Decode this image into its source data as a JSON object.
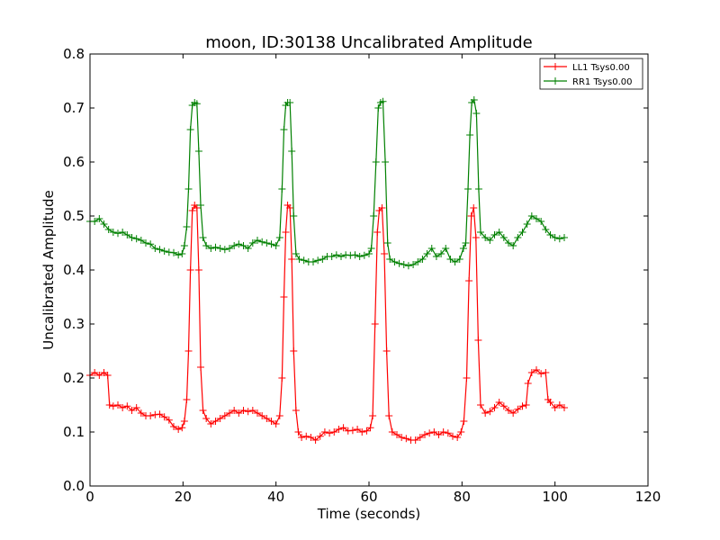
{
  "chart_data": {
    "type": "line",
    "title": "moon, ID:30138 Uncalibrated Amplitude",
    "xlabel": "Time (seconds)",
    "ylabel": "Uncalibrated Amplitude",
    "xlim": [
      0,
      120
    ],
    "ylim": [
      0.0,
      0.8
    ],
    "xticks": [
      "0",
      "20",
      "40",
      "60",
      "80",
      "100",
      "120"
    ],
    "yticks": [
      "0.0",
      "0.1",
      "0.2",
      "0.3",
      "0.4",
      "0.5",
      "0.6",
      "0.7",
      "0.8"
    ],
    "grid": false,
    "legend_position": "top-right",
    "marker": "plus",
    "series": [
      {
        "name": "LL1 Tsys0.00",
        "color": "#ff0000",
        "points": [
          [
            0,
            0.205
          ],
          [
            1,
            0.21
          ],
          [
            2,
            0.205
          ],
          [
            3,
            0.21
          ],
          [
            3.8,
            0.205
          ],
          [
            4.2,
            0.15
          ],
          [
            5,
            0.148
          ],
          [
            6,
            0.15
          ],
          [
            7,
            0.145
          ],
          [
            8,
            0.148
          ],
          [
            9,
            0.14
          ],
          [
            10,
            0.145
          ],
          [
            11,
            0.135
          ],
          [
            12,
            0.13
          ],
          [
            13,
            0.13
          ],
          [
            14,
            0.132
          ],
          [
            15,
            0.133
          ],
          [
            16,
            0.128
          ],
          [
            17,
            0.122
          ],
          [
            18,
            0.11
          ],
          [
            19,
            0.105
          ],
          [
            19.8,
            0.108
          ],
          [
            20.3,
            0.12
          ],
          [
            20.8,
            0.16
          ],
          [
            21.2,
            0.25
          ],
          [
            21.6,
            0.4
          ],
          [
            22,
            0.51
          ],
          [
            22.5,
            0.52
          ],
          [
            23,
            0.515
          ],
          [
            23.4,
            0.4
          ],
          [
            23.8,
            0.22
          ],
          [
            24.3,
            0.14
          ],
          [
            25,
            0.125
          ],
          [
            26,
            0.115
          ],
          [
            27,
            0.12
          ],
          [
            28,
            0.125
          ],
          [
            29,
            0.13
          ],
          [
            30,
            0.135
          ],
          [
            31,
            0.14
          ],
          [
            32,
            0.135
          ],
          [
            33,
            0.14
          ],
          [
            34,
            0.138
          ],
          [
            35,
            0.14
          ],
          [
            36,
            0.135
          ],
          [
            37,
            0.13
          ],
          [
            38,
            0.125
          ],
          [
            39,
            0.12
          ],
          [
            40,
            0.115
          ],
          [
            40.8,
            0.13
          ],
          [
            41.3,
            0.2
          ],
          [
            41.7,
            0.35
          ],
          [
            42.1,
            0.47
          ],
          [
            42.5,
            0.52
          ],
          [
            43,
            0.515
          ],
          [
            43.4,
            0.42
          ],
          [
            43.8,
            0.25
          ],
          [
            44.3,
            0.14
          ],
          [
            44.8,
            0.1
          ],
          [
            45.5,
            0.09
          ],
          [
            46.5,
            0.092
          ],
          [
            47.5,
            0.09
          ],
          [
            48.5,
            0.085
          ],
          [
            49.5,
            0.092
          ],
          [
            50.5,
            0.1
          ],
          [
            51.5,
            0.098
          ],
          [
            52.5,
            0.1
          ],
          [
            53.5,
            0.105
          ],
          [
            54.5,
            0.108
          ],
          [
            55.5,
            0.102
          ],
          [
            56.5,
            0.103
          ],
          [
            57.5,
            0.105
          ],
          [
            58.5,
            0.1
          ],
          [
            59.5,
            0.102
          ],
          [
            60.3,
            0.108
          ],
          [
            60.8,
            0.13
          ],
          [
            61.3,
            0.3
          ],
          [
            61.8,
            0.47
          ],
          [
            62.2,
            0.51
          ],
          [
            62.8,
            0.515
          ],
          [
            63.3,
            0.43
          ],
          [
            63.8,
            0.25
          ],
          [
            64.3,
            0.13
          ],
          [
            65,
            0.1
          ],
          [
            66,
            0.095
          ],
          [
            67,
            0.09
          ],
          [
            68,
            0.088
          ],
          [
            69,
            0.085
          ],
          [
            70,
            0.085
          ],
          [
            71,
            0.09
          ],
          [
            72,
            0.095
          ],
          [
            73,
            0.098
          ],
          [
            74,
            0.1
          ],
          [
            75,
            0.095
          ],
          [
            76,
            0.1
          ],
          [
            77,
            0.098
          ],
          [
            78,
            0.092
          ],
          [
            79,
            0.09
          ],
          [
            79.8,
            0.1
          ],
          [
            80.4,
            0.12
          ],
          [
            81,
            0.2
          ],
          [
            81.5,
            0.38
          ],
          [
            82,
            0.5
          ],
          [
            82.5,
            0.515
          ],
          [
            83,
            0.46
          ],
          [
            83.5,
            0.27
          ],
          [
            84,
            0.15
          ],
          [
            85,
            0.135
          ],
          [
            86,
            0.138
          ],
          [
            87,
            0.145
          ],
          [
            88,
            0.155
          ],
          [
            89,
            0.148
          ],
          [
            90,
            0.14
          ],
          [
            91,
            0.135
          ],
          [
            92,
            0.142
          ],
          [
            93,
            0.148
          ],
          [
            93.8,
            0.15
          ],
          [
            94.2,
            0.19
          ],
          [
            95,
            0.21
          ],
          [
            96,
            0.215
          ],
          [
            97,
            0.208
          ],
          [
            98,
            0.21
          ],
          [
            98.5,
            0.16
          ],
          [
            99,
            0.155
          ],
          [
            100,
            0.145
          ],
          [
            101,
            0.15
          ],
          [
            102,
            0.145
          ]
        ]
      },
      {
        "name": "RR1 Tsys0.00",
        "color": "#008000",
        "points": [
          [
            0,
            0.49
          ],
          [
            1,
            0.49
          ],
          [
            2,
            0.495
          ],
          [
            3,
            0.485
          ],
          [
            4,
            0.475
          ],
          [
            5,
            0.47
          ],
          [
            6,
            0.468
          ],
          [
            7,
            0.47
          ],
          [
            8,
            0.465
          ],
          [
            9,
            0.46
          ],
          [
            10,
            0.458
          ],
          [
            11,
            0.455
          ],
          [
            12,
            0.45
          ],
          [
            13,
            0.448
          ],
          [
            14,
            0.44
          ],
          [
            15,
            0.438
          ],
          [
            16,
            0.435
          ],
          [
            17,
            0.433
          ],
          [
            18,
            0.432
          ],
          [
            19,
            0.428
          ],
          [
            19.8,
            0.43
          ],
          [
            20.3,
            0.445
          ],
          [
            20.8,
            0.48
          ],
          [
            21.2,
            0.55
          ],
          [
            21.6,
            0.66
          ],
          [
            22,
            0.705
          ],
          [
            22.5,
            0.71
          ],
          [
            23,
            0.708
          ],
          [
            23.4,
            0.62
          ],
          [
            23.8,
            0.52
          ],
          [
            24.3,
            0.46
          ],
          [
            25,
            0.445
          ],
          [
            26,
            0.44
          ],
          [
            27,
            0.442
          ],
          [
            28,
            0.44
          ],
          [
            29,
            0.438
          ],
          [
            30,
            0.44
          ],
          [
            31,
            0.445
          ],
          [
            32,
            0.448
          ],
          [
            33,
            0.445
          ],
          [
            34,
            0.44
          ],
          [
            35,
            0.45
          ],
          [
            36,
            0.455
          ],
          [
            37,
            0.452
          ],
          [
            38,
            0.45
          ],
          [
            39,
            0.448
          ],
          [
            40,
            0.445
          ],
          [
            40.8,
            0.46
          ],
          [
            41.3,
            0.55
          ],
          [
            41.7,
            0.66
          ],
          [
            42.1,
            0.705
          ],
          [
            42.5,
            0.71
          ],
          [
            43,
            0.71
          ],
          [
            43.4,
            0.62
          ],
          [
            43.8,
            0.5
          ],
          [
            44.3,
            0.43
          ],
          [
            45,
            0.42
          ],
          [
            46,
            0.418
          ],
          [
            47,
            0.415
          ],
          [
            48,
            0.415
          ],
          [
            49,
            0.418
          ],
          [
            50,
            0.42
          ],
          [
            51,
            0.425
          ],
          [
            52,
            0.425
          ],
          [
            53,
            0.428
          ],
          [
            54,
            0.425
          ],
          [
            55,
            0.428
          ],
          [
            56,
            0.427
          ],
          [
            57,
            0.428
          ],
          [
            58,
            0.425
          ],
          [
            59,
            0.427
          ],
          [
            60,
            0.43
          ],
          [
            60.5,
            0.44
          ],
          [
            61,
            0.5
          ],
          [
            61.5,
            0.6
          ],
          [
            62,
            0.7
          ],
          [
            62.5,
            0.71
          ],
          [
            63,
            0.712
          ],
          [
            63.5,
            0.6
          ],
          [
            64,
            0.45
          ],
          [
            64.5,
            0.42
          ],
          [
            65.5,
            0.415
          ],
          [
            66.5,
            0.412
          ],
          [
            67.5,
            0.41
          ],
          [
            68.5,
            0.408
          ],
          [
            69.5,
            0.41
          ],
          [
            70.5,
            0.415
          ],
          [
            71.5,
            0.42
          ],
          [
            72.5,
            0.43
          ],
          [
            73.5,
            0.44
          ],
          [
            74.5,
            0.425
          ],
          [
            75.5,
            0.43
          ],
          [
            76.5,
            0.44
          ],
          [
            77.5,
            0.42
          ],
          [
            78.5,
            0.415
          ],
          [
            79.5,
            0.42
          ],
          [
            80.3,
            0.44
          ],
          [
            80.8,
            0.45
          ],
          [
            81.3,
            0.55
          ],
          [
            81.7,
            0.65
          ],
          [
            82.1,
            0.71
          ],
          [
            82.6,
            0.715
          ],
          [
            83.1,
            0.69
          ],
          [
            83.6,
            0.55
          ],
          [
            84,
            0.47
          ],
          [
            85,
            0.46
          ],
          [
            86,
            0.455
          ],
          [
            87,
            0.465
          ],
          [
            88,
            0.47
          ],
          [
            89,
            0.46
          ],
          [
            90,
            0.45
          ],
          [
            91,
            0.445
          ],
          [
            92,
            0.46
          ],
          [
            93,
            0.47
          ],
          [
            94,
            0.485
          ],
          [
            95,
            0.5
          ],
          [
            96,
            0.495
          ],
          [
            97,
            0.49
          ],
          [
            98,
            0.475
          ],
          [
            99,
            0.465
          ],
          [
            100,
            0.46
          ],
          [
            101,
            0.458
          ],
          [
            102,
            0.46
          ]
        ]
      }
    ]
  }
}
